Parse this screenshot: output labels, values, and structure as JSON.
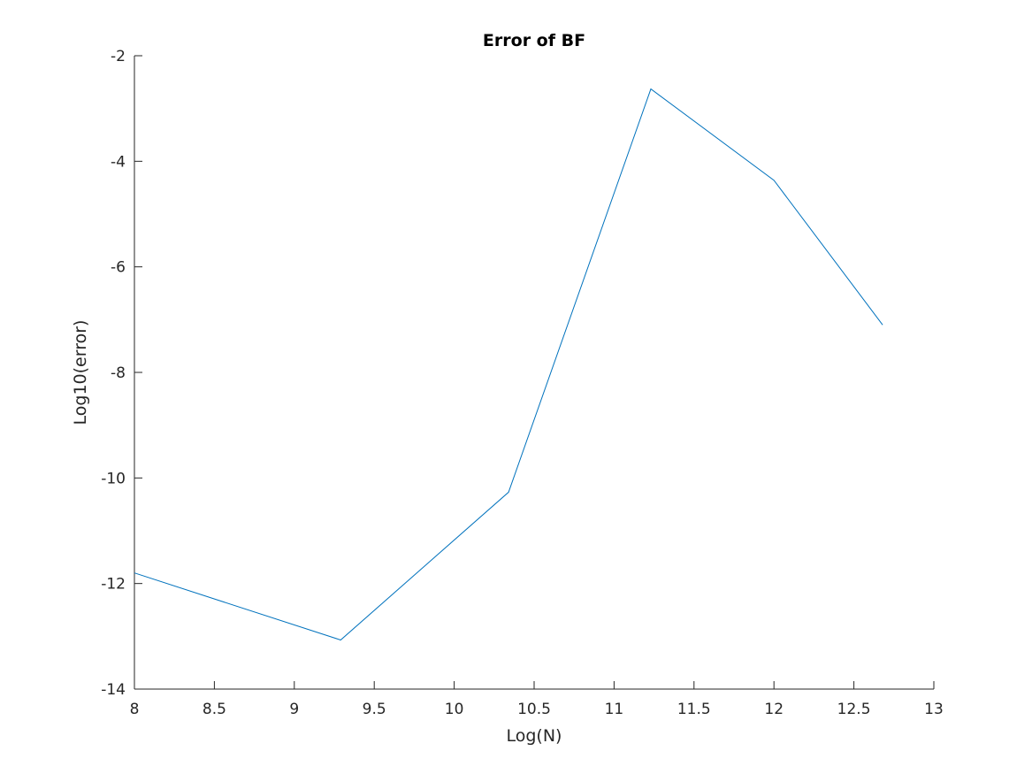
{
  "chart_data": {
    "type": "line",
    "title": "Error of BF",
    "xlabel": "Log(N)",
    "ylabel": "Log10(error)",
    "xlim": [
      8,
      13
    ],
    "ylim": [
      -14,
      -2
    ],
    "xticks": [
      "8",
      "8.5",
      "9",
      "9.5",
      "10",
      "10.5",
      "11",
      "11.5",
      "12",
      "12.5",
      "13"
    ],
    "yticks": [
      "-14",
      "-12",
      "-10",
      "-8",
      "-6",
      "-4",
      "-2"
    ],
    "grid": false,
    "series": [
      {
        "color": "#0072bd",
        "x": [
          8.0,
          9.29,
          10.34,
          11.23,
          12.0,
          12.68
        ],
        "y": [
          -11.8,
          -13.07,
          -10.27,
          -2.63,
          -4.36,
          -7.1
        ]
      }
    ]
  }
}
